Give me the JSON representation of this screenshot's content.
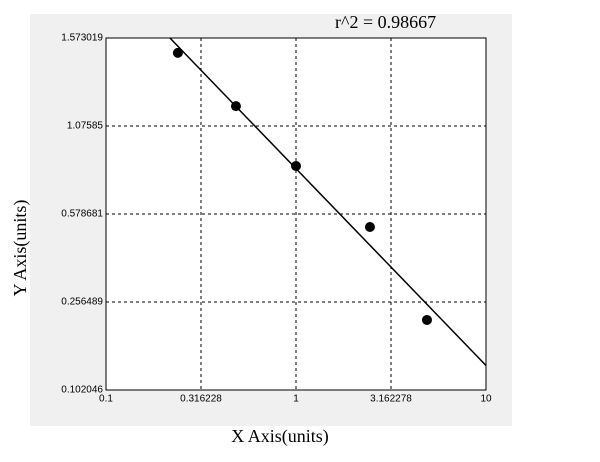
{
  "chart_data": {
    "type": "scatter",
    "annotation": "r^2  = 0.98667",
    "x_label": "X Axis(units)",
    "y_label": "Y Axis(units)",
    "xscale": "log",
    "grid": true,
    "xlim": [
      0.1,
      10
    ],
    "xticks": [
      0.1,
      0.316228,
      1,
      3.162278,
      10
    ],
    "ylim": [
      0.102046,
      1.573019
    ],
    "yticks": [
      0.102046,
      0.256489,
      0.578681,
      1.07585,
      1.573019
    ],
    "series": [
      {
        "type": "scatter",
        "color": "#000000",
        "x": [
          0.239,
          0.483,
          1.0,
          2.45,
          4.89
        ],
        "values": [
          1.489,
          1.188,
          0.85,
          0.531,
          0.225
        ]
      },
      {
        "type": "line",
        "color": "#000000",
        "x": [
          0.217,
          10
        ],
        "values": [
          1.573019,
          0.145
        ]
      }
    ]
  }
}
